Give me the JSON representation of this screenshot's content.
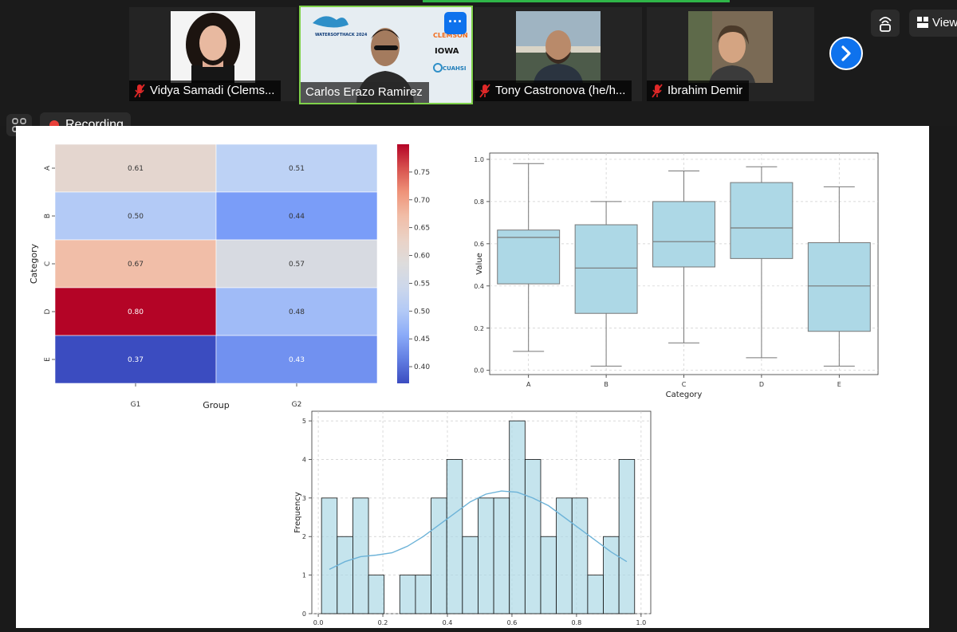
{
  "participants": [
    {
      "name": "Vidya Samadi  (Clems...",
      "muted": true
    },
    {
      "name": "Carlos Erazo Ramirez",
      "muted": false,
      "active": true
    },
    {
      "name": "Tony Castronova (he/h...",
      "muted": true
    },
    {
      "name": "Ibrahim Demir",
      "muted": true
    }
  ],
  "logos": {
    "clemson": "CLEMSON",
    "iowa": "IOWA",
    "cuahsi": "CUAHSI",
    "hack": "WATERSOFTHACK 2024"
  },
  "controls": {
    "view_label": "View",
    "recording_label": "Recording",
    "more_label": "···"
  },
  "colors": {
    "accent": "#0e72ed",
    "recording": "#e8403a",
    "active_border": "#7fd14a"
  },
  "chart_data": [
    {
      "type": "heatmap",
      "title": "",
      "xlabel": "Group",
      "ylabel": "Category",
      "x": [
        "G1",
        "G2"
      ],
      "y": [
        "A",
        "B",
        "C",
        "D",
        "E"
      ],
      "values": [
        [
          0.61,
          0.51
        ],
        [
          0.5,
          0.44
        ],
        [
          0.67,
          0.57
        ],
        [
          0.8,
          0.48
        ],
        [
          0.37,
          0.43
        ]
      ],
      "colorbar_ticks": [
        "0.75",
        "0.70",
        "0.65",
        "0.60",
        "0.55",
        "0.50",
        "0.45",
        "0.40"
      ],
      "colorbar_range": [
        0.37,
        0.8
      ],
      "colormap": "coolwarm"
    },
    {
      "type": "box",
      "xlabel": "Category",
      "ylabel": "Value",
      "categories": [
        "A",
        "B",
        "C",
        "D",
        "E"
      ],
      "boxes": [
        {
          "whislo": 0.09,
          "q1": 0.41,
          "med": 0.63,
          "q3": 0.665,
          "whishi": 0.98
        },
        {
          "whislo": 0.02,
          "q1": 0.27,
          "med": 0.485,
          "q3": 0.69,
          "whishi": 0.8
        },
        {
          "whislo": 0.13,
          "q1": 0.49,
          "med": 0.61,
          "q3": 0.8,
          "whishi": 0.945
        },
        {
          "whislo": 0.06,
          "q1": 0.53,
          "med": 0.675,
          "q3": 0.89,
          "whishi": 0.965
        },
        {
          "whislo": 0.02,
          "q1": 0.185,
          "med": 0.4,
          "q3": 0.605,
          "whishi": 0.87
        }
      ],
      "yticks": [
        "0.0",
        "0.2",
        "0.4",
        "0.6",
        "0.8",
        "1.0"
      ],
      "ylim": [
        -0.02,
        1.03
      ],
      "grid": true,
      "box_color": "#add8e6"
    },
    {
      "type": "histogram",
      "xlabel": "Value",
      "ylabel": "Frequency",
      "bin_start": 0.01,
      "bin_width": 0.0485,
      "counts": [
        3,
        2,
        3,
        1,
        0,
        1,
        1,
        3,
        4,
        2,
        3,
        3,
        5,
        4,
        2,
        3,
        3,
        1,
        2,
        4
      ],
      "kde": [
        1.15,
        1.35,
        1.48,
        1.52,
        1.58,
        1.75,
        2.0,
        2.3,
        2.6,
        2.9,
        3.1,
        3.18,
        3.15,
        3.0,
        2.8,
        2.5,
        2.2,
        1.9,
        1.6,
        1.35
      ],
      "xticks": [
        "0.0",
        "0.2",
        "0.4",
        "0.6",
        "0.8",
        "1.0"
      ],
      "yticks": [
        "0",
        "1",
        "2",
        "3",
        "4",
        "5"
      ],
      "xlim": [
        -0.02,
        1.03
      ],
      "ylim": [
        0,
        5.25
      ],
      "grid": true,
      "bar_color": "#add8e6"
    }
  ]
}
